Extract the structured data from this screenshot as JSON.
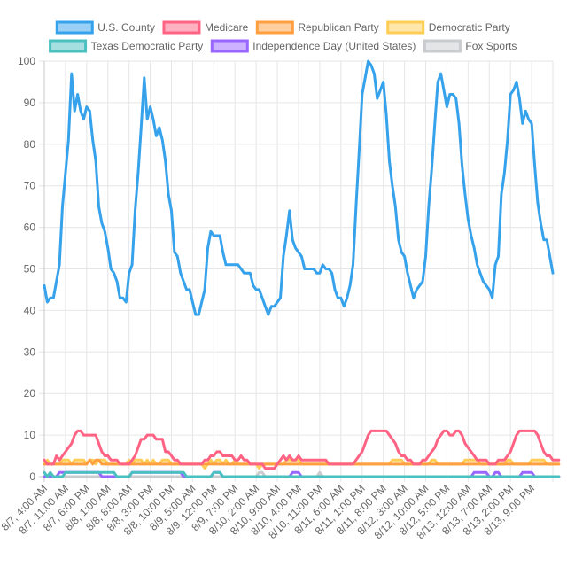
{
  "chart_data": {
    "type": "line",
    "ylim": [
      0,
      100
    ],
    "yticks": [
      0,
      10,
      20,
      30,
      40,
      50,
      60,
      70,
      80,
      90,
      100
    ],
    "grid": true,
    "legend_position": "top",
    "x_tick_labels": [
      "8/7, 4:00 AM",
      "8/7, 11:00 AM",
      "8/7, 6:00 PM",
      "8/8, 1:00 AM",
      "8/8, 8:00 AM",
      "8/8, 3:00 PM",
      "8/8, 10:00 PM",
      "8/9, 5:00 AM",
      "8/9, 12:00 PM",
      "8/9, 7:00 PM",
      "8/10, 2:00 AM",
      "8/10, 9:00 AM",
      "8/10, 4:00 PM",
      "8/10, 11:00 PM",
      "8/11, 6:00 AM",
      "8/11, 1:00 PM",
      "8/11, 8:00 PM",
      "8/12, 3:00 AM",
      "8/12, 10:00 AM",
      "8/12, 5:00 PM",
      "8/13, 12:00 AM",
      "8/13, 7:00 AM",
      "8/13, 2:00 PM",
      "8/13, 9:00 PM"
    ],
    "series": [
      {
        "name": "U.S. County",
        "color": "#36a2eb",
        "fill": "#9ad0f5",
        "values": [
          46,
          42,
          43,
          43,
          47,
          51,
          65,
          73,
          81,
          97,
          88,
          92,
          88,
          86,
          89,
          88,
          81,
          76,
          65,
          61,
          59,
          55,
          50,
          49,
          47,
          43,
          43,
          42,
          49,
          51,
          64,
          73,
          84,
          96,
          86,
          89,
          86,
          82,
          84,
          81,
          76,
          68,
          64,
          54,
          53,
          49,
          47,
          45,
          45,
          42,
          39,
          39,
          42,
          45,
          55,
          59,
          58,
          58,
          58,
          54,
          51,
          51,
          51,
          51,
          51,
          50,
          49,
          49,
          49,
          46,
          45,
          45,
          43,
          41,
          39,
          41,
          41,
          42,
          43,
          53,
          58,
          64,
          57,
          55,
          54,
          53,
          50,
          50,
          50,
          50,
          49,
          49,
          51,
          50,
          50,
          49,
          45,
          43,
          43,
          41,
          43,
          46,
          51,
          65,
          78,
          92,
          96,
          100,
          99,
          97,
          91,
          93,
          95,
          87,
          76,
          70,
          65,
          57,
          54,
          53,
          49,
          46,
          43,
          45,
          46,
          47,
          53,
          65,
          74,
          85,
          95,
          97,
          93,
          89,
          92,
          92,
          91,
          85,
          75,
          68,
          62,
          58,
          55,
          51,
          49,
          47,
          46,
          45,
          43,
          51,
          53,
          68,
          73,
          81,
          92,
          93,
          95,
          91,
          85,
          88,
          86,
          85,
          75,
          66,
          61,
          57,
          57,
          53,
          49
        ]
      },
      {
        "name": "Medicare",
        "color": "#ff6384",
        "fill": "#ffb1c1",
        "values": [
          4,
          3,
          3,
          3,
          5,
          4,
          5,
          6,
          7,
          8,
          10,
          11,
          11,
          10,
          10,
          10,
          10,
          10,
          8,
          6,
          5,
          5,
          4,
          4,
          4,
          3,
          3,
          3,
          3,
          4,
          5,
          7,
          9,
          9,
          10,
          10,
          10,
          9,
          9,
          9,
          6,
          6,
          5,
          4,
          4,
          3,
          3,
          3,
          3,
          3,
          3,
          3,
          3,
          4,
          4,
          5,
          5,
          6,
          6,
          5,
          5,
          5,
          5,
          4,
          4,
          5,
          4,
          4,
          3,
          3,
          3,
          3,
          3,
          2,
          2,
          2,
          2,
          3,
          4,
          5,
          4,
          5,
          4,
          4,
          5,
          4,
          4,
          4,
          4,
          4,
          4,
          4,
          4,
          4,
          3,
          3,
          3,
          3,
          3,
          3,
          3,
          3,
          3,
          4,
          5,
          6,
          8,
          10,
          11,
          11,
          11,
          11,
          11,
          11,
          10,
          9,
          8,
          6,
          5,
          5,
          4,
          4,
          3,
          3,
          3,
          4,
          4,
          5,
          6,
          7,
          9,
          10,
          11,
          11,
          10,
          10,
          11,
          11,
          10,
          8,
          7,
          6,
          5,
          4,
          4,
          4,
          4,
          3,
          3,
          3,
          4,
          4,
          4,
          5,
          6,
          8,
          10,
          11,
          11,
          11,
          11,
          11,
          11,
          10,
          8,
          6,
          5,
          5,
          4,
          4,
          4
        ]
      },
      {
        "name": "Republican Party",
        "color": "#ff9f40",
        "fill": "#ffcf9f",
        "values": [
          3,
          3,
          3,
          3,
          3,
          3,
          3,
          3,
          3,
          3,
          3,
          3,
          3,
          3,
          3,
          4,
          3,
          4,
          4,
          3,
          3,
          3,
          3,
          3,
          3,
          3,
          3,
          3,
          3,
          3,
          3,
          3,
          3,
          3,
          3,
          3,
          3,
          3,
          3,
          3,
          3,
          3,
          3,
          3,
          3,
          3,
          3,
          3,
          3,
          3,
          3,
          3,
          3,
          3,
          3,
          3,
          3,
          3,
          3,
          3,
          3,
          3,
          3,
          3,
          3,
          3,
          3,
          3,
          3,
          3,
          3,
          3,
          3,
          3,
          3,
          3,
          3,
          3,
          3,
          3,
          3,
          3,
          3,
          3,
          3,
          3,
          3,
          3,
          3,
          3,
          3,
          3,
          3,
          3,
          3,
          3,
          3,
          3,
          3,
          3,
          3,
          3,
          3,
          3,
          3,
          3,
          3,
          3,
          3,
          3,
          3,
          3,
          3,
          3,
          3,
          3,
          3,
          3,
          3,
          3,
          3,
          3,
          3,
          3,
          3,
          3,
          3,
          3,
          3,
          3,
          3,
          3,
          3,
          3,
          3,
          3,
          3,
          3,
          3,
          3,
          3,
          3,
          3,
          3,
          3,
          3,
          3,
          3,
          3,
          3,
          3,
          3,
          3,
          3,
          3,
          3,
          3,
          3,
          3,
          3,
          3,
          3,
          3,
          3,
          3,
          3,
          3,
          3,
          3,
          3,
          3
        ]
      },
      {
        "name": "Democratic Party",
        "color": "#ffcd56",
        "fill": "#ffe6aa",
        "values": [
          3,
          4,
          3,
          3,
          3,
          3,
          4,
          4,
          4,
          3,
          4,
          4,
          4,
          4,
          3,
          4,
          4,
          3,
          4,
          4,
          4,
          3,
          3,
          3,
          3,
          3,
          3,
          3,
          4,
          3,
          4,
          4,
          4,
          3,
          4,
          3,
          4,
          3,
          3,
          4,
          4,
          4,
          3,
          3,
          3,
          3,
          3,
          3,
          3,
          3,
          3,
          3,
          3,
          2,
          3,
          4,
          3,
          4,
          4,
          3,
          4,
          3,
          3,
          4,
          3,
          3,
          3,
          3,
          3,
          3,
          3,
          2,
          3,
          3,
          3,
          3,
          3,
          3,
          3,
          3,
          4,
          4,
          4,
          4,
          4,
          3,
          3,
          3,
          3,
          3,
          3,
          3,
          3,
          3,
          3,
          3,
          3,
          3,
          3,
          3,
          3,
          3,
          3,
          3,
          3,
          3,
          3,
          3,
          3,
          3,
          3,
          3,
          3,
          3,
          3,
          4,
          4,
          4,
          4,
          3,
          3,
          3,
          3,
          3,
          3,
          3,
          3,
          3,
          4,
          4,
          3,
          3,
          3,
          3,
          3,
          3,
          3,
          3,
          3,
          4,
          4,
          4,
          4,
          4,
          3,
          3,
          3,
          3,
          3,
          3,
          3,
          3,
          3,
          4,
          4,
          3,
          3,
          3,
          3,
          3,
          3,
          4,
          4,
          4,
          4,
          4,
          3,
          3,
          3,
          3,
          3
        ]
      },
      {
        "name": "Texas Democratic Party",
        "color": "#4bc0c0",
        "fill": "#a5dfdf",
        "values": [
          1,
          0,
          1,
          0,
          0,
          0,
          0,
          1,
          1,
          1,
          1,
          1,
          1,
          1,
          1,
          1,
          1,
          1,
          1,
          1,
          1,
          1,
          1,
          1,
          0,
          0,
          0,
          0,
          0,
          1,
          1,
          1,
          1,
          1,
          1,
          1,
          1,
          1,
          1,
          1,
          1,
          1,
          1,
          1,
          1,
          1,
          1,
          0,
          0,
          0,
          0,
          0,
          0,
          0,
          0,
          0,
          1,
          1,
          1,
          0,
          0,
          0,
          0,
          0,
          0,
          0,
          0,
          0,
          0,
          0,
          0,
          0,
          0,
          0,
          0,
          0,
          0,
          0,
          0,
          0,
          0,
          0,
          0,
          0,
          0,
          0,
          0,
          0,
          0,
          0,
          0,
          0,
          0,
          0,
          0,
          0,
          0,
          0,
          0,
          0,
          0,
          0,
          0,
          0,
          0,
          0,
          0,
          0,
          0,
          0,
          0,
          0,
          0,
          0,
          0,
          0,
          0,
          0,
          0,
          0,
          0,
          0,
          0,
          0,
          0,
          0,
          0,
          0,
          0,
          0,
          0,
          0,
          0,
          0,
          0,
          0,
          0,
          0,
          0,
          0,
          0,
          0,
          0,
          0,
          0,
          0,
          0,
          0,
          0,
          0,
          0,
          0,
          0,
          0,
          0,
          0,
          0,
          0,
          0,
          0,
          0,
          0,
          0,
          0,
          0,
          0,
          0,
          0,
          0,
          0,
          0
        ]
      },
      {
        "name": "Independence Day (United States)",
        "color": "#9966ff",
        "fill": "#ccb2ff",
        "values": [
          0,
          0,
          0,
          0,
          0,
          1,
          1,
          1,
          1,
          1,
          1,
          1,
          1,
          1,
          1,
          1,
          1,
          1,
          1,
          0,
          0,
          0,
          0,
          0,
          0,
          0,
          0,
          0,
          0,
          1,
          1,
          1,
          1,
          1,
          1,
          1,
          1,
          1,
          1,
          1,
          1,
          1,
          1,
          1,
          1,
          1,
          0,
          0,
          0,
          0,
          0,
          0,
          0,
          0,
          0,
          0,
          1,
          1,
          1,
          0,
          0,
          0,
          0,
          0,
          0,
          0,
          0,
          0,
          0,
          0,
          0,
          0,
          0,
          0,
          0,
          0,
          0,
          0,
          0,
          0,
          0,
          0,
          1,
          1,
          1,
          0,
          0,
          0,
          0,
          0,
          0,
          0,
          0,
          0,
          0,
          0,
          0,
          0,
          0,
          0,
          0,
          0,
          0,
          0,
          0,
          0,
          0,
          0,
          0,
          0,
          0,
          0,
          0,
          0,
          0,
          0,
          0,
          0,
          0,
          0,
          0,
          0,
          0,
          0,
          0,
          0,
          0,
          0,
          0,
          0,
          0,
          0,
          0,
          0,
          0,
          0,
          0,
          0,
          0,
          0,
          0,
          0,
          1,
          1,
          1,
          1,
          1,
          0,
          0,
          1,
          1,
          0,
          0,
          0,
          0,
          0,
          0,
          0,
          1,
          1,
          1,
          1,
          0,
          0,
          0,
          0,
          0,
          0,
          0,
          0,
          0
        ]
      },
      {
        "name": "Fox Sports",
        "color": "#c9cbcf",
        "fill": "#e4e5e7",
        "values": [
          0,
          0,
          0,
          0,
          0,
          0,
          0,
          0,
          0,
          0,
          0,
          0,
          0,
          0,
          0,
          0,
          0,
          0,
          0,
          0,
          0,
          0,
          0,
          0,
          0,
          0,
          0,
          0,
          0,
          0,
          0,
          0,
          0,
          0,
          0,
          0,
          0,
          0,
          0,
          0,
          0,
          0,
          0,
          0,
          0,
          0,
          0,
          0,
          0,
          0,
          0,
          0,
          0,
          0,
          0,
          0,
          0,
          0,
          0,
          0,
          0,
          0,
          0,
          0,
          0,
          0,
          0,
          0,
          0,
          0,
          0,
          1,
          1,
          0,
          0,
          0,
          0,
          0,
          0,
          0,
          0,
          0,
          0,
          0,
          0,
          0,
          0,
          0,
          0,
          0,
          0,
          1,
          0,
          0,
          0,
          0,
          0,
          0,
          0,
          0,
          0,
          0,
          0,
          0,
          0,
          0,
          0,
          0,
          0,
          0,
          0,
          0,
          0,
          0,
          0,
          0,
          0,
          0,
          0,
          0,
          0,
          0,
          0,
          0,
          0,
          0,
          0,
          0,
          0,
          0,
          0,
          0,
          0,
          0,
          0,
          0,
          0,
          0,
          0,
          0,
          0,
          0,
          0,
          0,
          0,
          0,
          0,
          0,
          0,
          0,
          0,
          0,
          0,
          0,
          0,
          0,
          0,
          0,
          0,
          0,
          0,
          0,
          0,
          0,
          0,
          0,
          0,
          0,
          0,
          0,
          0
        ]
      }
    ]
  }
}
